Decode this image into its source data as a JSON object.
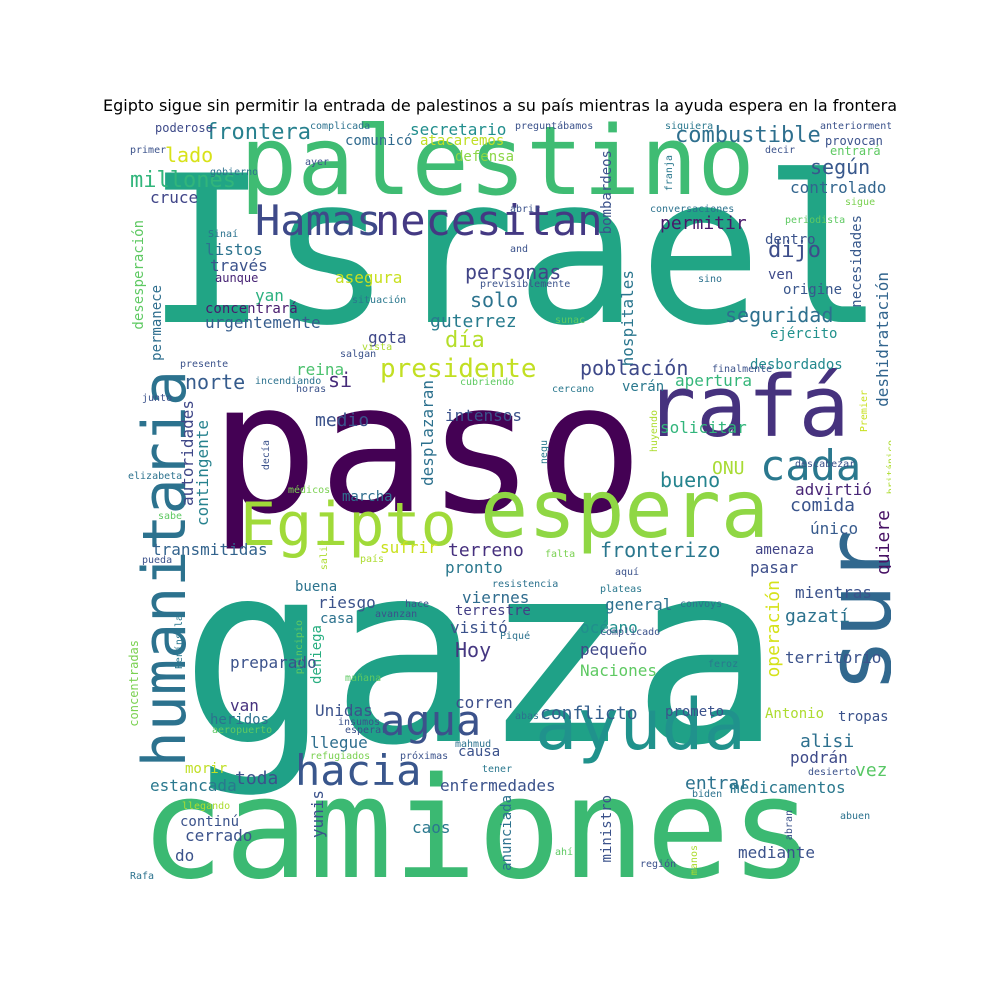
{
  "title": "Egipto sigue sin permitir la entrada de palestinos a su país mientras la ayuda espera en la frontera",
  "words": [
    {
      "text": "Israel",
      "color": "#21a585"
    },
    {
      "text": "gaza",
      "color": "#1fa187"
    },
    {
      "text": "paso",
      "color": "#440154"
    },
    {
      "text": "camiones",
      "color": "#3bb972"
    },
    {
      "text": "palestino",
      "color": "#3fbc73"
    },
    {
      "text": "espera",
      "color": "#8fd744"
    },
    {
      "text": "Egipto",
      "color": "#a0da39"
    },
    {
      "text": "rafá",
      "color": "#46327e"
    },
    {
      "text": "sur",
      "color": "#31688e"
    },
    {
      "text": "humanitaria",
      "color": "#2c728e"
    },
    {
      "text": "ayuda",
      "color": "#20928c"
    },
    {
      "text": "necesitan",
      "color": "#443983"
    },
    {
      "text": "Hamas",
      "color": "#3e4a89"
    },
    {
      "text": "cada",
      "color": "#2a788e"
    },
    {
      "text": "agua",
      "color": "#3b528b"
    },
    {
      "text": "hacia",
      "color": "#39568c"
    },
    {
      "text": "presidente",
      "color": "#c2df23"
    },
    {
      "text": "combustible",
      "color": "#2e6f8e"
    },
    {
      "text": "frontera",
      "color": "#27808e"
    },
    {
      "text": "millones",
      "color": "#31b57b"
    },
    {
      "text": "lado",
      "color": "#d8e219"
    },
    {
      "text": "según",
      "color": "#38588c"
    },
    {
      "text": "controlado",
      "color": "#32658e"
    },
    {
      "text": "personas",
      "color": "#414487"
    },
    {
      "text": "permitir",
      "color": "#48186a"
    },
    {
      "text": "dijo",
      "color": "#3d4d8a"
    },
    {
      "text": "seguridad",
      "color": "#2d708e"
    },
    {
      "text": "solo",
      "color": "#2c738e"
    },
    {
      "text": "día",
      "color": "#b5de2b"
    },
    {
      "text": "guterrez",
      "color": "#287c8e"
    },
    {
      "text": "hospitales",
      "color": "#2a768e"
    },
    {
      "text": "población",
      "color": "#3e4989"
    },
    {
      "text": "norte",
      "color": "#365c8d"
    },
    {
      "text": "si",
      "color": "#472c7a"
    },
    {
      "text": "apertura",
      "color": "#34b679"
    },
    {
      "text": "autoridades",
      "color": "#3f4788"
    },
    {
      "text": "contingente",
      "color": "#26828e"
    },
    {
      "text": "medio",
      "color": "#3b528b"
    },
    {
      "text": "reina",
      "color": "#4ac16d"
    },
    {
      "text": "desplazaran",
      "color": "#2d718e"
    },
    {
      "text": "intensos",
      "color": "#3b528b"
    },
    {
      "text": "solicitar",
      "color": "#31b57b"
    },
    {
      "text": "bueno",
      "color": "#25848e"
    },
    {
      "text": "ONU",
      "color": "#a8db34"
    },
    {
      "text": "advirtió",
      "color": "#482576"
    },
    {
      "text": "comida",
      "color": "#3a548c"
    },
    {
      "text": "único",
      "color": "#375b8d"
    },
    {
      "text": "quiere",
      "color": "#471164"
    },
    {
      "text": "operación",
      "color": "#d5e21a"
    },
    {
      "text": "fronterizo",
      "color": "#2a778e"
    },
    {
      "text": "terreno",
      "color": "#46307e"
    },
    {
      "text": "sufrir",
      "color": "#cae11f"
    },
    {
      "text": "marcha",
      "color": "#2e6d8e"
    },
    {
      "text": "transmitidas",
      "color": "#33638d"
    },
    {
      "text": "cruce",
      "color": "#404588"
    },
    {
      "text": "listos",
      "color": "#2c738e"
    },
    {
      "text": "través",
      "color": "#3b528b"
    },
    {
      "text": "aunque",
      "color": "#482475"
    },
    {
      "text": "yan",
      "color": "#2ab07f"
    },
    {
      "text": "concentrará",
      "color": "#481c6e"
    },
    {
      "text": "urgentemente",
      "color": "#365d8d"
    },
    {
      "text": "gota",
      "color": "#3f4889"
    },
    {
      "text": "asegura",
      "color": "#c8e020"
    },
    {
      "text": "desesperación",
      "color": "#5ec962"
    },
    {
      "text": "permanece",
      "color": "#2e6e8e"
    },
    {
      "text": "secretario",
      "color": "#218e8d"
    },
    {
      "text": "comunicó",
      "color": "#306a8e"
    },
    {
      "text": "atacaremos",
      "color": "#c0df25"
    },
    {
      "text": "defensa",
      "color": "#8bd646"
    },
    {
      "text": "bombardeos",
      "color": "#3b528b"
    },
    {
      "text": "necesidades",
      "color": "#38598c"
    },
    {
      "text": "deshidratación",
      "color": "#32658e"
    },
    {
      "text": "ejército",
      "color": "#21918c"
    },
    {
      "text": "origine",
      "color": "#39568c"
    },
    {
      "text": "ven",
      "color": "#3e4a89"
    },
    {
      "text": "dentro",
      "color": "#3b528b"
    },
    {
      "text": "desbordados",
      "color": "#23898e"
    },
    {
      "text": "verán",
      "color": "#2a788e"
    },
    {
      "text": "pasar",
      "color": "#3d4e8a"
    },
    {
      "text": "amenaza",
      "color": "#414487"
    },
    {
      "text": "mientras",
      "color": "#3b528b"
    },
    {
      "text": "gazatí",
      "color": "#2c728e"
    },
    {
      "text": "territorio",
      "color": "#3b528b"
    },
    {
      "text": "general",
      "color": "#2d708e"
    },
    {
      "text": "océano",
      "color": "#218f8d"
    },
    {
      "text": "pequeño",
      "color": "#3f4788"
    },
    {
      "text": "Naciones",
      "color": "#5ec962"
    },
    {
      "text": "Hoy",
      "color": "#453781"
    },
    {
      "text": "visitó",
      "color": "#3b528b"
    },
    {
      "text": "terrestre",
      "color": "#433e85"
    },
    {
      "text": "viernes",
      "color": "#2f6c8e"
    },
    {
      "text": "pronto",
      "color": "#2a788e"
    },
    {
      "text": "riesgo",
      "color": "#3b528b"
    },
    {
      "text": "buena",
      "color": "#2c738e"
    },
    {
      "text": "casa",
      "color": "#2c728e"
    },
    {
      "text": "deniega",
      "color": "#28ae80"
    },
    {
      "text": "preparado",
      "color": "#3b528b"
    },
    {
      "text": "conflicto",
      "color": "#355f8d"
    },
    {
      "text": "corren",
      "color": "#3d4e8a"
    },
    {
      "text": "Unidas",
      "color": "#3b528b"
    },
    {
      "text": "llegue",
      "color": "#2e6e8e"
    },
    {
      "text": "van",
      "color": "#46327e"
    },
    {
      "text": "heridos",
      "color": "#2c728e"
    },
    {
      "text": "toda",
      "color": "#3b528b"
    },
    {
      "text": "estancada",
      "color": "#2a788e"
    },
    {
      "text": "morir",
      "color": "#c0df25"
    },
    {
      "text": "causa",
      "color": "#3b528b"
    },
    {
      "text": "enfermedades",
      "color": "#3b528b"
    },
    {
      "text": "entrar",
      "color": "#2c728e"
    },
    {
      "text": "medicamentos",
      "color": "#2a788e"
    },
    {
      "text": "alisi",
      "color": "#2d708e"
    },
    {
      "text": "vez",
      "color": "#58c765"
    },
    {
      "text": "podrán",
      "color": "#3e4a89"
    },
    {
      "text": "tropas",
      "color": "#3b528b"
    },
    {
      "text": "Antonio",
      "color": "#addc30"
    },
    {
      "text": "prometo",
      "color": "#3b528b"
    },
    {
      "text": "cerrado",
      "color": "#3b528b"
    },
    {
      "text": "continú",
      "color": "#3b528b"
    },
    {
      "text": "do",
      "color": "#3b528b"
    },
    {
      "text": "caos",
      "color": "#2a788e"
    },
    {
      "text": "yunis",
      "color": "#3b528b"
    },
    {
      "text": "anunciada",
      "color": "#2c728e"
    },
    {
      "text": "ministro",
      "color": "#3b528b"
    },
    {
      "text": "mediante",
      "color": "#3b528b"
    },
    {
      "text": "concentradas",
      "color": "#7ad151"
    },
    {
      "text": "Península",
      "color": "#2a788e"
    },
    {
      "text": "poderoso",
      "color": "#3e4a89"
    },
    {
      "text": "primer",
      "color": "#3b528b"
    },
    {
      "text": "complicada",
      "color": "#2c728e"
    },
    {
      "text": "preguntábamos",
      "color": "#3b528b"
    },
    {
      "text": "siquiera",
      "color": "#2a788e"
    },
    {
      "text": "anteriormente",
      "color": "#3b528b"
    },
    {
      "text": "provocan",
      "color": "#3b528b"
    },
    {
      "text": "entrará",
      "color": "#5ec962"
    },
    {
      "text": "decir",
      "color": "#3b528b"
    },
    {
      "text": "gobierno",
      "color": "#2c728e"
    },
    {
      "text": "ayer",
      "color": "#3b528b"
    },
    {
      "text": "franja",
      "color": "#2a788e"
    },
    {
      "text": "abrir",
      "color": "#3b528b"
    },
    {
      "text": "conversaciones",
      "color": "#2c728e"
    },
    {
      "text": "periodista",
      "color": "#5ec962"
    },
    {
      "text": "sigue",
      "color": "#7ad151"
    },
    {
      "text": "Sinaí",
      "color": "#2c728e"
    },
    {
      "text": "and",
      "color": "#3b528b"
    },
    {
      "text": "previsiblemente",
      "color": "#3b528b"
    },
    {
      "text": "sino",
      "color": "#2c728e"
    },
    {
      "text": "situación",
      "color": "#2a788e"
    },
    {
      "text": "sunac",
      "color": "#5ec962"
    },
    {
      "text": "vista",
      "color": "#addc30"
    },
    {
      "text": "salgan",
      "color": "#3b528b"
    },
    {
      "text": "presente",
      "color": "#3b528b"
    },
    {
      "text": "incendiando",
      "color": "#2c728e"
    },
    {
      "text": "cubriendo",
      "color": "#5ec962"
    },
    {
      "text": "horas",
      "color": "#3b528b"
    },
    {
      "text": "cercano",
      "color": "#2a788e"
    },
    {
      "text": "finalmente",
      "color": "#3b528b"
    },
    {
      "text": "junto",
      "color": "#3b528b"
    },
    {
      "text": "Premier",
      "color": "#c8e020"
    },
    {
      "text": "huyendo",
      "color": "#addc30"
    },
    {
      "text": "británico",
      "color": "#addc30"
    },
    {
      "text": "descabezar",
      "color": "#3b528b"
    },
    {
      "text": "elizabeta",
      "color": "#2c728e"
    },
    {
      "text": "decía",
      "color": "#3b528b"
    },
    {
      "text": "negu",
      "color": "#2a788e"
    },
    {
      "text": "médicos",
      "color": "#7ad151"
    },
    {
      "text": "sabe",
      "color": "#5ec962"
    },
    {
      "text": "pueda",
      "color": "#3b528b"
    },
    {
      "text": "salir",
      "color": "#addc30"
    },
    {
      "text": "país",
      "color": "#addc30"
    },
    {
      "text": "falta",
      "color": "#7ad151"
    },
    {
      "text": "resistencia",
      "color": "#2c728e"
    },
    {
      "text": "aquí",
      "color": "#3b528b"
    },
    {
      "text": "hace",
      "color": "#3b528b"
    },
    {
      "text": "plateas",
      "color": "#2a788e"
    },
    {
      "text": "convoys",
      "color": "#2c728e"
    },
    {
      "text": "principio",
      "color": "#5ec962"
    },
    {
      "text": "avanzan",
      "color": "#3b528b"
    },
    {
      "text": "Piqué",
      "color": "#2c728e"
    },
    {
      "text": "complicado",
      "color": "#3b528b"
    },
    {
      "text": "feroz",
      "color": "#2a788e"
    },
    {
      "text": "mañana",
      "color": "#5ec962"
    },
    {
      "text": "abas",
      "color": "#2c728e"
    },
    {
      "text": "insumos",
      "color": "#3b528b"
    },
    {
      "text": "esperar",
      "color": "#3b528b"
    },
    {
      "text": "aeropuerto",
      "color": "#5ec962"
    },
    {
      "text": "mahmud",
      "color": "#2c728e"
    },
    {
      "text": "refugiados",
      "color": "#7ad151"
    },
    {
      "text": "próximas",
      "color": "#3b528b"
    },
    {
      "text": "tener",
      "color": "#2a788e"
    },
    {
      "text": "desierto",
      "color": "#3b528b"
    },
    {
      "text": "biden",
      "color": "#2c728e"
    },
    {
      "text": "llegando",
      "color": "#addc30"
    },
    {
      "text": "abran",
      "color": "#3b528b"
    },
    {
      "text": "abuen",
      "color": "#2c728e"
    },
    {
      "text": "ahí",
      "color": "#5ec962"
    },
    {
      "text": "región",
      "color": "#3b528b"
    },
    {
      "text": "manos",
      "color": "#addc30"
    },
    {
      "text": "Rafa",
      "color": "#2c728e"
    }
  ]
}
